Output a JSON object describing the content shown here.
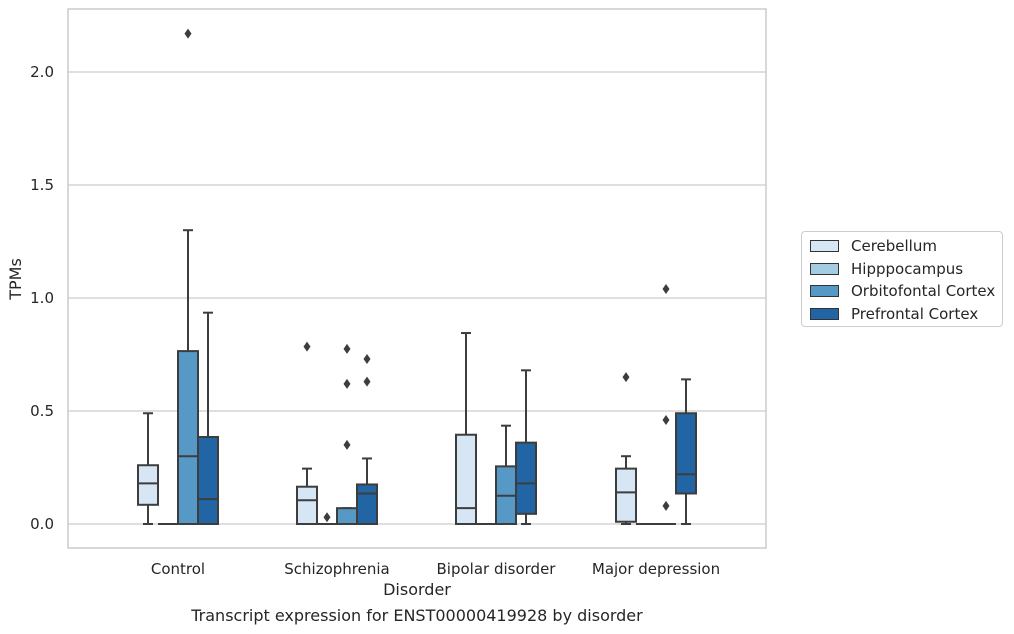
{
  "caption": "Transcript expression for ENST00000419928 by disorder",
  "chart_data": {
    "type": "box",
    "title": "",
    "xlabel": "Disorder",
    "ylabel": "TPMs",
    "ylim": [
      -0.105,
      2.28
    ],
    "yticks": [
      "0.0",
      "0.5",
      "1.0",
      "1.5",
      "2.0"
    ],
    "grid": "horizontal",
    "legend_position": "right",
    "categories": [
      "Control",
      "Schizophrenia",
      "Bipolar disorder",
      "Major depression"
    ],
    "series": [
      {
        "name": "Cerebellum",
        "color": "#d6e6f4",
        "boxes": [
          {
            "whislo": 0.0,
            "q1": 0.085,
            "med": 0.18,
            "q3": 0.26,
            "whishi": 0.49,
            "fliers": []
          },
          {
            "whislo": 0.0,
            "q1": 0.0,
            "med": 0.105,
            "q3": 0.165,
            "whishi": 0.245,
            "fliers": [
              0.785
            ]
          },
          {
            "whislo": 0.0,
            "q1": 0.0,
            "med": 0.07,
            "q3": 0.395,
            "whishi": 0.845,
            "fliers": []
          },
          {
            "whislo": 0.0,
            "q1": 0.01,
            "med": 0.14,
            "q3": 0.245,
            "whishi": 0.3,
            "fliers": [
              0.65
            ]
          }
        ]
      },
      {
        "name": "Hipppocampus",
        "color": "#a5cbe2",
        "boxes": [
          {
            "whislo": 0.0,
            "q1": 0.0,
            "med": 0.0,
            "q3": 0.0,
            "whishi": 0.0,
            "fliers": []
          },
          {
            "whislo": 0.0,
            "q1": 0.0,
            "med": 0.0,
            "q3": 0.0,
            "whishi": 0.0,
            "fliers": [
              0.03
            ]
          },
          {
            "whislo": 0.0,
            "q1": 0.0,
            "med": 0.0,
            "q3": 0.0,
            "whishi": 0.0,
            "fliers": []
          },
          {
            "whislo": 0.0,
            "q1": 0.0,
            "med": 0.0,
            "q3": 0.0,
            "whishi": 0.0,
            "fliers": []
          }
        ]
      },
      {
        "name": "Orbitofontal Cortex",
        "color": "#5799c6",
        "boxes": [
          {
            "whislo": 0.0,
            "q1": 0.0,
            "med": 0.3,
            "q3": 0.765,
            "whishi": 1.3,
            "fliers": [
              2.17
            ]
          },
          {
            "whislo": 0.0,
            "q1": 0.0,
            "med": 0.0,
            "q3": 0.07,
            "whishi": 0.07,
            "fliers": [
              0.35,
              0.62,
              0.775
            ]
          },
          {
            "whislo": 0.0,
            "q1": 0.0,
            "med": 0.125,
            "q3": 0.255,
            "whishi": 0.435,
            "fliers": []
          },
          {
            "whislo": 0.0,
            "q1": 0.0,
            "med": 0.0,
            "q3": 0.0,
            "whishi": 0.0,
            "fliers": [
              0.08,
              0.46,
              1.04
            ]
          }
        ]
      },
      {
        "name": "Prefrontal Cortex",
        "color": "#2265a4",
        "boxes": [
          {
            "whislo": 0.0,
            "q1": 0.0,
            "med": 0.11,
            "q3": 0.385,
            "whishi": 0.935,
            "fliers": []
          },
          {
            "whislo": 0.0,
            "q1": 0.0,
            "med": 0.135,
            "q3": 0.175,
            "whishi": 0.29,
            "fliers": [
              0.63,
              0.73
            ]
          },
          {
            "whislo": 0.0,
            "q1": 0.045,
            "med": 0.18,
            "q3": 0.36,
            "whishi": 0.68,
            "fliers": []
          },
          {
            "whislo": 0.0,
            "q1": 0.135,
            "med": 0.22,
            "q3": 0.49,
            "whishi": 0.64,
            "fliers": []
          }
        ]
      }
    ]
  }
}
